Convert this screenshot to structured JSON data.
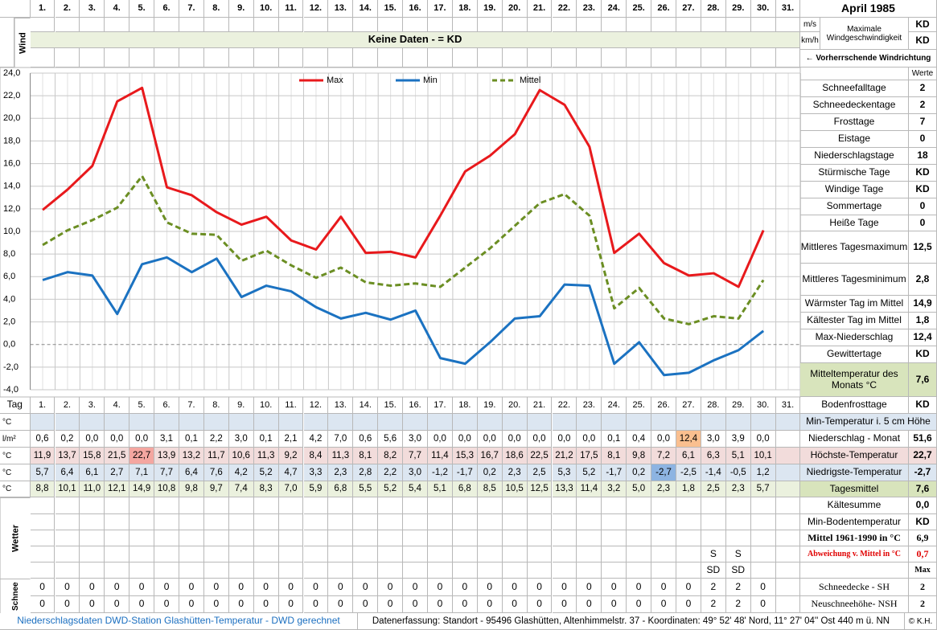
{
  "header": {
    "title": "April 1985"
  },
  "wind": {
    "label": "Wind",
    "units": [
      "m/s",
      "km/h"
    ],
    "banner": "Keine Daten -  = KD",
    "max_label": "Maximale Windgeschwindigkeit",
    "max_values": [
      "KD",
      "KD"
    ],
    "direction": "← Vorherrschende Windrichtung"
  },
  "chart_data": {
    "type": "line",
    "categories": [
      "1.",
      "2.",
      "3.",
      "4.",
      "5.",
      "6.",
      "7.",
      "8.",
      "9.",
      "10.",
      "11.",
      "12.",
      "13.",
      "14.",
      "15.",
      "16.",
      "17.",
      "18.",
      "19.",
      "20.",
      "21.",
      "22.",
      "23.",
      "24.",
      "25.",
      "26.",
      "27.",
      "28.",
      "29.",
      "30.",
      "31."
    ],
    "ylim": [
      -4,
      24
    ],
    "yticks": [
      {
        "value": -4,
        "label": "-4,0"
      },
      {
        "value": -2,
        "label": "-2,0"
      },
      {
        "value": 0,
        "label": "0,0"
      },
      {
        "value": 2,
        "label": "2,0"
      },
      {
        "value": 4,
        "label": "4,0"
      },
      {
        "value": 6,
        "label": "6,0"
      },
      {
        "value": 8,
        "label": "8,0"
      },
      {
        "value": 10,
        "label": "10,0"
      },
      {
        "value": 12,
        "label": "12,0"
      },
      {
        "value": 14,
        "label": "14,0"
      },
      {
        "value": 16,
        "label": "16,0"
      },
      {
        "value": 18,
        "label": "18,0"
      },
      {
        "value": 20,
        "label": "20,0"
      },
      {
        "value": 22,
        "label": "22,0"
      },
      {
        "value": 24,
        "label": "24,0"
      }
    ],
    "grid": true,
    "series": [
      {
        "name": "Max",
        "color": "#e8191c",
        "dashed": false,
        "values": [
          11.9,
          13.7,
          15.8,
          21.5,
          22.7,
          13.9,
          13.2,
          11.7,
          10.6,
          11.3,
          9.2,
          8.4,
          11.3,
          8.1,
          8.2,
          7.7,
          11.4,
          15.3,
          16.7,
          18.6,
          22.5,
          21.2,
          17.5,
          8.1,
          9.8,
          7.2,
          6.1,
          6.3,
          5.1,
          10.1,
          null
        ],
        "value_labels": [
          "11,9",
          "13,7",
          "15,8",
          "21,5",
          "22,7",
          "13,9",
          "13,2",
          "11,7",
          "10,6",
          "11,3",
          "9,2",
          "8,4",
          "11,3",
          "8,1",
          "8,2",
          "7,7",
          "11,4",
          "15,3",
          "16,7",
          "18,6",
          "22,5",
          "21,2",
          "17,5",
          "8,1",
          "9,8",
          "7,2",
          "6,1",
          "6,3",
          "5,1",
          "10,1",
          null
        ]
      },
      {
        "name": "Min",
        "color": "#1b72c1",
        "dashed": false,
        "values": [
          5.7,
          6.4,
          6.1,
          2.7,
          7.1,
          7.7,
          6.4,
          7.6,
          4.2,
          5.2,
          4.7,
          3.3,
          2.3,
          2.8,
          2.2,
          3.0,
          -1.2,
          -1.7,
          0.2,
          2.3,
          2.5,
          5.3,
          5.2,
          -1.7,
          0.2,
          -2.7,
          -2.5,
          -1.4,
          -0.5,
          1.2,
          null
        ],
        "value_labels": [
          "5,7",
          "6,4",
          "6,1",
          "2,7",
          "7,1",
          "7,7",
          "6,4",
          "7,6",
          "4,2",
          "5,2",
          "4,7",
          "3,3",
          "2,3",
          "2,8",
          "2,2",
          "3,0",
          "-1,2",
          "-1,7",
          "0,2",
          "2,3",
          "2,5",
          "5,3",
          "5,2",
          "-1,7",
          "0,2",
          "-2,7",
          "-2,5",
          "-1,4",
          "-0,5",
          "1,2",
          null
        ]
      },
      {
        "name": "Mittel",
        "color": "#6b8e23",
        "dashed": true,
        "values": [
          8.8,
          10.1,
          11.0,
          12.1,
          14.9,
          10.8,
          9.8,
          9.7,
          7.4,
          8.3,
          7.0,
          5.9,
          6.8,
          5.5,
          5.2,
          5.4,
          5.1,
          6.8,
          8.5,
          10.5,
          12.5,
          13.3,
          11.4,
          3.2,
          5.0,
          2.3,
          1.8,
          2.5,
          2.3,
          5.7,
          null
        ],
        "value_labels": [
          "8,8",
          "10,1",
          "11,0",
          "12,1",
          "14,9",
          "10,8",
          "9,8",
          "9,7",
          "7,4",
          "8,3",
          "7,0",
          "5,9",
          "6,8",
          "5,5",
          "5,2",
          "5,4",
          "5,1",
          "6,8",
          "8,5",
          "10,5",
          "12,5",
          "13,3",
          "11,4",
          "3,2",
          "5,0",
          "2,3",
          "1,8",
          "2,5",
          "2,3",
          "5,7",
          null
        ]
      }
    ]
  },
  "stats": {
    "header": "Werte",
    "rows": [
      {
        "label": "Schneefalltage",
        "value": "2"
      },
      {
        "label": "Schneedeckentage",
        "value": "2"
      },
      {
        "label": "Frosttage",
        "value": "7"
      },
      {
        "label": "Eistage",
        "value": "0"
      },
      {
        "label": "Niederschlagstage",
        "value": "18"
      },
      {
        "label": "Stürmische Tage",
        "value": "KD"
      },
      {
        "label": "Windige Tage",
        "value": "KD"
      },
      {
        "label": "Sommertage",
        "value": "0"
      },
      {
        "label": "Heiße Tage",
        "value": "0"
      },
      {
        "label": "Mittleres Tagesmaximum",
        "value": "12,5"
      },
      {
        "label": "Mittleres Tagesminimum",
        "value": "2,8"
      },
      {
        "label": "Wärmster Tag im Mittel",
        "value": "14,9"
      },
      {
        "label": "Kältester Tag im Mittel",
        "value": "1,8"
      },
      {
        "label": "Max-Niederschlag",
        "value": "12,4"
      },
      {
        "label": "Gewittertage",
        "value": "KD"
      },
      {
        "label": "Mitteltemperatur des Monats °C",
        "value": "7,6"
      }
    ]
  },
  "table": {
    "day_label": "Tag",
    "units": [
      "°C",
      "l/m²",
      "°C",
      "°C",
      "°C"
    ],
    "precipitation": [
      "0,6",
      "0,2",
      "0,0",
      "0,0",
      "0,0",
      "3,1",
      "0,1",
      "2,2",
      "3,0",
      "0,1",
      "2,1",
      "4,2",
      "7,0",
      "0,6",
      "5,6",
      "3,0",
      "0,0",
      "0,0",
      "0,0",
      "0,0",
      "0,0",
      "0,0",
      "0,0",
      "0,1",
      "0,4",
      "0,0",
      "12,4",
      "3,0",
      "3,9",
      "0,0"
    ],
    "weather_label": "Wetter",
    "weather": [
      [
        null,
        null,
        null,
        null,
        null,
        null,
        null,
        null,
        null,
        null,
        null,
        null,
        null,
        null,
        null,
        null,
        null,
        null,
        null,
        null,
        null,
        null,
        null,
        null,
        null,
        null,
        null,
        "S",
        "S"
      ],
      [
        null,
        null,
        null,
        null,
        null,
        null,
        null,
        null,
        null,
        null,
        null,
        null,
        null,
        null,
        null,
        null,
        null,
        null,
        null,
        null,
        null,
        null,
        null,
        null,
        null,
        null,
        null,
        "SD",
        "SD"
      ]
    ],
    "snow_label": "Schnee",
    "snow": [
      [
        0,
        0,
        0,
        0,
        0,
        0,
        0,
        0,
        0,
        0,
        0,
        0,
        0,
        0,
        0,
        0,
        0,
        0,
        0,
        0,
        0,
        0,
        0,
        0,
        0,
        0,
        0,
        2,
        2,
        0
      ],
      [
        0,
        0,
        0,
        0,
        0,
        0,
        0,
        0,
        0,
        0,
        0,
        0,
        0,
        0,
        0,
        0,
        0,
        0,
        0,
        0,
        0,
        0,
        0,
        0,
        0,
        0,
        0,
        2,
        2,
        0
      ]
    ]
  },
  "side": [
    {
      "label": "Bodenfrosttage",
      "value": "KD"
    },
    {
      "label": "Min-Temperatur i. 5 cm Höhe"
    },
    {
      "label": "Niederschlag - Monat",
      "value": "51,6"
    },
    {
      "label": "Höchste-Temperatur",
      "value": "22,7"
    },
    {
      "label": "Niedrigste-Temperatur",
      "value": "-2,7"
    },
    {
      "label": "Tagesmittel",
      "value": "7,6"
    },
    {
      "label": "Kältesumme",
      "value": "0,0"
    },
    {
      "label": "Min-Bodentemperatur",
      "value": "KD"
    },
    {
      "label": "Mittel 1961-1990 in °C",
      "value": "6,9"
    },
    {
      "label": "Abweichung v. Mittel in °C",
      "value": "0,7"
    },
    {
      "value": "Max"
    },
    {
      "label": "Schneedecke -  SH",
      "value": "2"
    },
    {
      "label": "Neuschneehöhe- NSH",
      "value": "2"
    }
  ],
  "footer": {
    "left": "Niederschlagsdaten DWD-Station Glashütten-Temperatur -  DWD gerechnet",
    "right": "Datenerfassung: Standort -  95496  Glashütten, Altenhimmelstr. 37 - Koordinaten:  49° 52' 48' Nord,   11° 27' 04'' Ost   440 m ü. NN",
    "copyright": "© K.H."
  }
}
